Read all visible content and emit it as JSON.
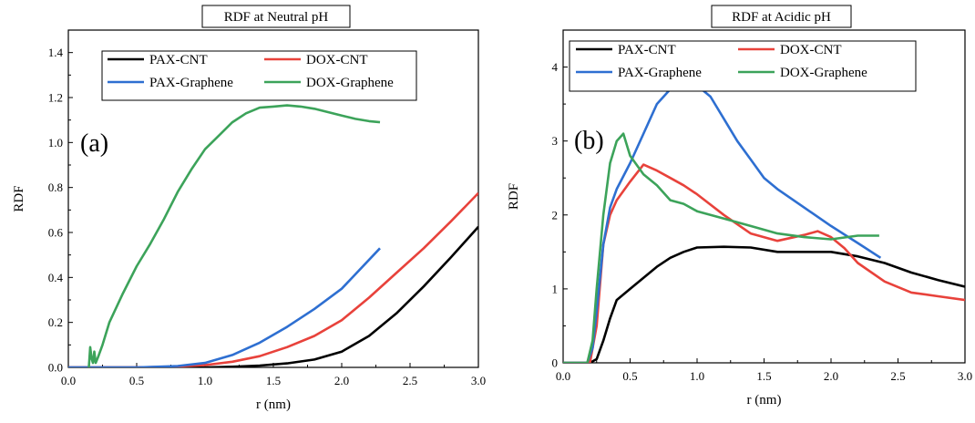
{
  "chart_data": [
    {
      "type": "line",
      "title": "RDF at Neutral pH",
      "panel_label": "(a)",
      "xlabel": "r (nm)",
      "ylabel": "RDF",
      "xlim": [
        0,
        3.0
      ],
      "ylim": [
        0,
        1.5
      ],
      "xticks": [
        "0.0",
        "0.5",
        "1.0",
        "1.5",
        "2.0",
        "2.5",
        "3.0"
      ],
      "yticks": [
        "0.0",
        "0.2",
        "0.4",
        "0.6",
        "0.8",
        "1.0",
        "1.2",
        "1.4"
      ],
      "legend_position": "top",
      "grid": false,
      "series": [
        {
          "name": "PAX-CNT",
          "color": "#000000",
          "x": [
            0,
            0.5,
            1.0,
            1.2,
            1.4,
            1.6,
            1.8,
            2.0,
            2.2,
            2.4,
            2.6,
            2.8,
            3.0
          ],
          "y": [
            0,
            0,
            0,
            0.003,
            0.008,
            0.018,
            0.035,
            0.07,
            0.14,
            0.24,
            0.36,
            0.49,
            0.625
          ]
        },
        {
          "name": "DOX-CNT",
          "color": "#e8423b",
          "x": [
            0,
            0.5,
            0.8,
            1.0,
            1.2,
            1.4,
            1.6,
            1.8,
            2.0,
            2.2,
            2.4,
            2.6,
            2.8,
            3.0
          ],
          "y": [
            0,
            0,
            0.004,
            0.01,
            0.025,
            0.05,
            0.09,
            0.14,
            0.21,
            0.31,
            0.42,
            0.53,
            0.65,
            0.775
          ]
        },
        {
          "name": "PAX-Graphene",
          "color": "#2e6fd1",
          "x": [
            0,
            0.5,
            0.8,
            1.0,
            1.2,
            1.4,
            1.6,
            1.8,
            2.0,
            2.28
          ],
          "y": [
            0,
            0,
            0.006,
            0.02,
            0.055,
            0.11,
            0.18,
            0.26,
            0.35,
            0.53
          ]
        },
        {
          "name": "DOX-Graphene",
          "color": "#3ca35a",
          "x": [
            0.15,
            0.16,
            0.17,
            0.18,
            0.19,
            0.2,
            0.22,
            0.25,
            0.3,
            0.4,
            0.5,
            0.6,
            0.7,
            0.8,
            0.9,
            1.0,
            1.1,
            1.2,
            1.3,
            1.4,
            1.5,
            1.6,
            1.7,
            1.8,
            1.9,
            2.0,
            2.1,
            2.2,
            2.28
          ],
          "y": [
            0,
            0.09,
            0.04,
            0.02,
            0.07,
            0.02,
            0.05,
            0.1,
            0.2,
            0.33,
            0.45,
            0.55,
            0.66,
            0.78,
            0.88,
            0.97,
            1.03,
            1.09,
            1.13,
            1.155,
            1.16,
            1.165,
            1.16,
            1.15,
            1.135,
            1.12,
            1.105,
            1.095,
            1.09
          ]
        }
      ]
    },
    {
      "type": "line",
      "title": "RDF at Acidic pH",
      "panel_label": "(b)",
      "xlabel": "r (nm)",
      "ylabel": "RDF",
      "xlim": [
        0,
        3.0
      ],
      "ylim": [
        0,
        4.5
      ],
      "xticks": [
        "0.0",
        "0.5",
        "1.0",
        "1.5",
        "2.0",
        "2.5",
        "3.0"
      ],
      "yticks": [
        "0",
        "1",
        "2",
        "3",
        "4"
      ],
      "legend_position": "top",
      "grid": false,
      "series": [
        {
          "name": "PAX-CNT",
          "color": "#000000",
          "x": [
            0,
            0.2,
            0.25,
            0.3,
            0.35,
            0.4,
            0.5,
            0.6,
            0.7,
            0.8,
            0.9,
            1.0,
            1.2,
            1.4,
            1.6,
            1.8,
            2.0,
            2.2,
            2.4,
            2.6,
            2.8,
            3.0
          ],
          "y": [
            0,
            0,
            0.05,
            0.3,
            0.6,
            0.85,
            1.0,
            1.15,
            1.3,
            1.42,
            1.5,
            1.56,
            1.57,
            1.56,
            1.5,
            1.5,
            1.5,
            1.44,
            1.35,
            1.22,
            1.12,
            1.03
          ]
        },
        {
          "name": "DOX-CNT",
          "color": "#e8423b",
          "x": [
            0,
            0.2,
            0.25,
            0.3,
            0.35,
            0.4,
            0.5,
            0.6,
            0.7,
            0.8,
            0.9,
            1.0,
            1.2,
            1.4,
            1.6,
            1.8,
            1.9,
            2.0,
            2.1,
            2.2,
            2.4,
            2.6,
            2.8,
            3.0
          ],
          "y": [
            0,
            0,
            0.5,
            1.6,
            2.0,
            2.2,
            2.45,
            2.68,
            2.6,
            2.5,
            2.4,
            2.28,
            2.0,
            1.75,
            1.65,
            1.73,
            1.78,
            1.7,
            1.55,
            1.35,
            1.1,
            0.95,
            0.9,
            0.85
          ]
        },
        {
          "name": "PAX-Graphene",
          "color": "#2e6fd1",
          "x": [
            0,
            0.18,
            0.22,
            0.25,
            0.3,
            0.35,
            0.4,
            0.5,
            0.6,
            0.7,
            0.8,
            0.9,
            0.95,
            1.0,
            1.1,
            1.2,
            1.3,
            1.4,
            1.5,
            1.6,
            1.8,
            2.0,
            2.2,
            2.37
          ],
          "y": [
            0,
            0,
            0.2,
            0.7,
            1.6,
            2.1,
            2.35,
            2.7,
            3.1,
            3.5,
            3.7,
            3.72,
            3.78,
            3.75,
            3.6,
            3.3,
            3.0,
            2.75,
            2.5,
            2.35,
            2.1,
            1.85,
            1.62,
            1.42
          ]
        },
        {
          "name": "DOX-Graphene",
          "color": "#3ca35a",
          "x": [
            0,
            0.18,
            0.22,
            0.25,
            0.3,
            0.35,
            0.4,
            0.45,
            0.5,
            0.6,
            0.7,
            0.8,
            0.9,
            1.0,
            1.1,
            1.2,
            1.4,
            1.6,
            1.8,
            2.0,
            2.2,
            2.36
          ],
          "y": [
            0,
            0,
            0.3,
            1.0,
            2.0,
            2.7,
            3.0,
            3.1,
            2.8,
            2.55,
            2.4,
            2.2,
            2.15,
            2.05,
            2.0,
            1.95,
            1.85,
            1.75,
            1.7,
            1.67,
            1.72,
            1.72
          ]
        }
      ]
    }
  ]
}
